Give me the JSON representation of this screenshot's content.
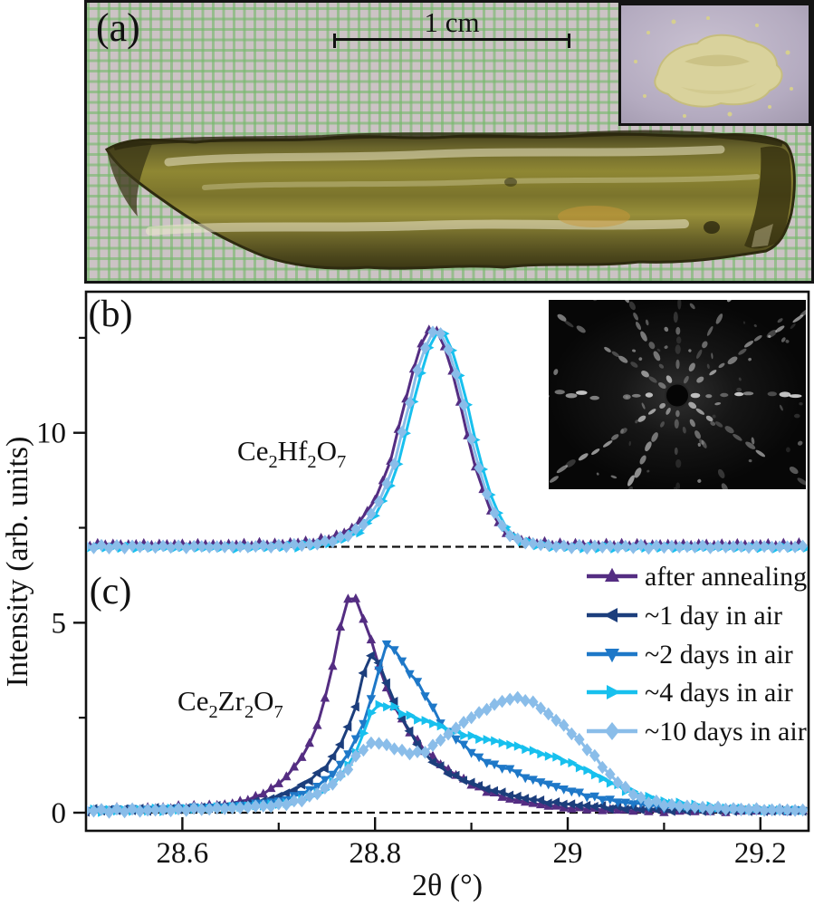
{
  "figure_labels": {
    "a": "(a)",
    "b": "(b)",
    "c": "(c)"
  },
  "panel_a": {
    "scale_bar_label": "1 cm"
  },
  "axes": {
    "xlabel": "2θ (°)",
    "ylabel": "Intensity (arb. units)",
    "x_major_tick_labels": [
      "28.6",
      "28.8",
      "29",
      "29.2"
    ],
    "y_major_tick_labels": [
      "0",
      "5",
      "10"
    ]
  },
  "chart_data": {
    "type": "line",
    "xlabel": "2θ (°)",
    "ylabel": "Intensity (arb. units)",
    "xlim": [
      28.5,
      29.25
    ],
    "ylim": [
      -0.5,
      13.75
    ],
    "x_major_ticks": [
      28.6,
      28.8,
      29.0,
      29.2
    ],
    "x_major_tick_labels": [
      "28.6",
      "28.8",
      "29",
      "29.2"
    ],
    "x_minor_ticks": [
      28.7,
      28.9,
      29.1
    ],
    "y_major_ticks": [
      0,
      5,
      10
    ],
    "y_minor_ticks": [
      2.5,
      7.5,
      12.5
    ],
    "grid": false,
    "legend_position": "right of panel c",
    "panel_b": {
      "label": "(b)",
      "annotation": "Ce2Hf2O7",
      "baseline": 7,
      "note": "all five measurement curves overlap on one unchanged peak",
      "peak_center": 28.863,
      "peak_height": 12.72,
      "points": [
        [
          28.5,
          7.0
        ],
        [
          28.54,
          7.0
        ],
        [
          28.58,
          7.0
        ],
        [
          28.62,
          7.0
        ],
        [
          28.66,
          7.0
        ],
        [
          28.7,
          7.02
        ],
        [
          28.72,
          7.04
        ],
        [
          28.74,
          7.08
        ],
        [
          28.76,
          7.18
        ],
        [
          28.78,
          7.42
        ],
        [
          28.79,
          7.65
        ],
        [
          28.8,
          8.0
        ],
        [
          28.81,
          8.5
        ],
        [
          28.82,
          9.2
        ],
        [
          28.83,
          10.2
        ],
        [
          28.84,
          11.25
        ],
        [
          28.85,
          12.15
        ],
        [
          28.86,
          12.65
        ],
        [
          28.865,
          12.72
        ],
        [
          28.87,
          12.55
        ],
        [
          28.88,
          11.95
        ],
        [
          28.89,
          10.95
        ],
        [
          28.9,
          9.85
        ],
        [
          28.91,
          8.85
        ],
        [
          28.92,
          8.1
        ],
        [
          28.93,
          7.6
        ],
        [
          28.94,
          7.3
        ],
        [
          28.95,
          7.15
        ],
        [
          28.97,
          7.05
        ],
        [
          29.0,
          7.0
        ],
        [
          29.05,
          7.0
        ],
        [
          29.1,
          7.0
        ],
        [
          29.15,
          7.0
        ],
        [
          29.2,
          7.0
        ],
        [
          29.25,
          7.0
        ]
      ]
    },
    "panel_c": {
      "label": "(c)",
      "annotation": "Ce2Zr2O7",
      "baseline": 0,
      "series": [
        {
          "name": "after annealing",
          "color": "#542d82",
          "marker": "triangle-up",
          "points": [
            [
              28.5,
              0.08
            ],
            [
              28.55,
              0.1
            ],
            [
              28.6,
              0.15
            ],
            [
              28.64,
              0.2
            ],
            [
              28.66,
              0.28
            ],
            [
              28.68,
              0.45
            ],
            [
              28.7,
              0.75
            ],
            [
              28.72,
              1.3
            ],
            [
              28.73,
              1.7
            ],
            [
              28.74,
              2.3
            ],
            [
              28.75,
              3.2
            ],
            [
              28.76,
              4.3
            ],
            [
              28.765,
              5.0
            ],
            [
              28.77,
              5.6
            ],
            [
              28.775,
              5.75
            ],
            [
              28.78,
              5.6
            ],
            [
              28.79,
              5.0
            ],
            [
              28.8,
              4.2
            ],
            [
              28.81,
              3.4
            ],
            [
              28.82,
              2.8
            ],
            [
              28.83,
              2.35
            ],
            [
              28.84,
              2.0
            ],
            [
              28.85,
              1.7
            ],
            [
              28.86,
              1.45
            ],
            [
              28.88,
              1.05
            ],
            [
              28.9,
              0.75
            ],
            [
              28.92,
              0.52
            ],
            [
              28.94,
              0.36
            ],
            [
              28.96,
              0.26
            ],
            [
              28.98,
              0.18
            ],
            [
              29.0,
              0.12
            ],
            [
              29.05,
              0.07
            ],
            [
              29.1,
              0.05
            ],
            [
              29.15,
              0.05
            ],
            [
              29.2,
              0.05
            ],
            [
              29.25,
              0.05
            ]
          ]
        },
        {
          "name": "~1 day in air",
          "color": "#1c3e7c",
          "marker": "triangle-left",
          "points": [
            [
              28.5,
              0.06
            ],
            [
              28.55,
              0.08
            ],
            [
              28.6,
              0.1
            ],
            [
              28.65,
              0.18
            ],
            [
              28.68,
              0.3
            ],
            [
              28.7,
              0.42
            ],
            [
              28.72,
              0.65
            ],
            [
              28.74,
              1.0
            ],
            [
              28.75,
              1.25
            ],
            [
              28.76,
              1.6
            ],
            [
              28.77,
              2.1
            ],
            [
              28.78,
              2.8
            ],
            [
              28.785,
              3.3
            ],
            [
              28.79,
              3.9
            ],
            [
              28.795,
              4.18
            ],
            [
              28.8,
              4.1
            ],
            [
              28.81,
              3.6
            ],
            [
              28.82,
              2.9
            ],
            [
              28.83,
              2.4
            ],
            [
              28.84,
              1.95
            ],
            [
              28.85,
              1.6
            ],
            [
              28.86,
              1.35
            ],
            [
              28.87,
              1.15
            ],
            [
              28.88,
              1.0
            ],
            [
              28.9,
              0.78
            ],
            [
              28.92,
              0.6
            ],
            [
              28.94,
              0.47
            ],
            [
              28.96,
              0.36
            ],
            [
              28.98,
              0.28
            ],
            [
              29.0,
              0.22
            ],
            [
              29.05,
              0.13
            ],
            [
              29.1,
              0.08
            ],
            [
              29.15,
              0.06
            ],
            [
              29.2,
              0.05
            ],
            [
              29.25,
              0.05
            ]
          ]
        },
        {
          "name": "~2 days in air",
          "color": "#1e78c8",
          "marker": "triangle-down",
          "points": [
            [
              28.5,
              0.05
            ],
            [
              28.55,
              0.07
            ],
            [
              28.6,
              0.1
            ],
            [
              28.65,
              0.16
            ],
            [
              28.7,
              0.3
            ],
            [
              28.72,
              0.45
            ],
            [
              28.74,
              0.7
            ],
            [
              28.76,
              1.1
            ],
            [
              28.78,
              1.9
            ],
            [
              28.79,
              2.5
            ],
            [
              28.8,
              3.3
            ],
            [
              28.805,
              3.9
            ],
            [
              28.81,
              4.4
            ],
            [
              28.815,
              4.45
            ],
            [
              28.82,
              4.3
            ],
            [
              28.83,
              3.9
            ],
            [
              28.84,
              3.55
            ],
            [
              28.85,
              3.2
            ],
            [
              28.86,
              2.75
            ],
            [
              28.87,
              2.3
            ],
            [
              28.88,
              2.0
            ],
            [
              28.89,
              1.85
            ],
            [
              28.9,
              1.6
            ],
            [
              28.91,
              1.4
            ],
            [
              28.92,
              1.3
            ],
            [
              28.93,
              1.2
            ],
            [
              28.94,
              1.15
            ],
            [
              28.95,
              1.0
            ],
            [
              28.96,
              0.9
            ],
            [
              28.98,
              0.75
            ],
            [
              29.0,
              0.6
            ],
            [
              29.02,
              0.45
            ],
            [
              29.05,
              0.3
            ],
            [
              29.1,
              0.15
            ],
            [
              29.15,
              0.08
            ],
            [
              29.2,
              0.06
            ],
            [
              29.25,
              0.05
            ]
          ]
        },
        {
          "name": "~4 days in air",
          "color": "#17c0ee",
          "marker": "triangle-right",
          "points": [
            [
              28.5,
              0.05
            ],
            [
              28.55,
              0.06
            ],
            [
              28.6,
              0.09
            ],
            [
              28.65,
              0.14
            ],
            [
              28.7,
              0.22
            ],
            [
              28.72,
              0.32
            ],
            [
              28.74,
              0.5
            ],
            [
              28.76,
              0.85
            ],
            [
              28.77,
              1.15
            ],
            [
              28.78,
              1.6
            ],
            [
              28.79,
              2.2
            ],
            [
              28.795,
              2.6
            ],
            [
              28.8,
              2.8
            ],
            [
              28.81,
              2.85
            ],
            [
              28.82,
              2.75
            ],
            [
              28.83,
              2.6
            ],
            [
              28.84,
              2.5
            ],
            [
              28.86,
              2.35
            ],
            [
              28.88,
              2.15
            ],
            [
              28.9,
              2.0
            ],
            [
              28.92,
              1.9
            ],
            [
              28.94,
              1.8
            ],
            [
              28.96,
              1.65
            ],
            [
              28.98,
              1.5
            ],
            [
              29.0,
              1.35
            ],
            [
              29.02,
              1.1
            ],
            [
              29.04,
              0.85
            ],
            [
              29.06,
              0.6
            ],
            [
              29.08,
              0.42
            ],
            [
              29.1,
              0.3
            ],
            [
              29.12,
              0.22
            ],
            [
              29.15,
              0.14
            ],
            [
              29.2,
              0.08
            ],
            [
              29.25,
              0.06
            ]
          ]
        },
        {
          "name": "~10 days in air",
          "color": "#8abde9",
          "marker": "diamond",
          "points": [
            [
              28.5,
              0.05
            ],
            [
              28.55,
              0.06
            ],
            [
              28.6,
              0.08
            ],
            [
              28.65,
              0.12
            ],
            [
              28.7,
              0.2
            ],
            [
              28.72,
              0.3
            ],
            [
              28.74,
              0.5
            ],
            [
              28.76,
              0.85
            ],
            [
              28.77,
              1.1
            ],
            [
              28.78,
              1.45
            ],
            [
              28.79,
              1.75
            ],
            [
              28.8,
              1.85
            ],
            [
              28.81,
              1.8
            ],
            [
              28.82,
              1.7
            ],
            [
              28.83,
              1.6
            ],
            [
              28.84,
              1.55
            ],
            [
              28.85,
              1.6
            ],
            [
              28.86,
              1.75
            ],
            [
              28.87,
              1.95
            ],
            [
              28.88,
              2.15
            ],
            [
              28.89,
              2.35
            ],
            [
              28.9,
              2.5
            ],
            [
              28.91,
              2.65
            ],
            [
              28.92,
              2.8
            ],
            [
              28.93,
              2.9
            ],
            [
              28.94,
              3.0
            ],
            [
              28.95,
              3.02
            ],
            [
              28.96,
              2.95
            ],
            [
              28.97,
              2.8
            ],
            [
              28.98,
              2.6
            ],
            [
              28.99,
              2.4
            ],
            [
              29.0,
              2.2
            ],
            [
              29.01,
              1.95
            ],
            [
              29.02,
              1.7
            ],
            [
              29.03,
              1.4
            ],
            [
              29.04,
              1.1
            ],
            [
              29.05,
              0.85
            ],
            [
              29.06,
              0.65
            ],
            [
              29.07,
              0.45
            ],
            [
              29.08,
              0.32
            ],
            [
              29.1,
              0.22
            ],
            [
              29.12,
              0.17
            ],
            [
              29.15,
              0.12
            ],
            [
              29.2,
              0.08
            ],
            [
              29.25,
              0.06
            ]
          ]
        }
      ]
    }
  }
}
